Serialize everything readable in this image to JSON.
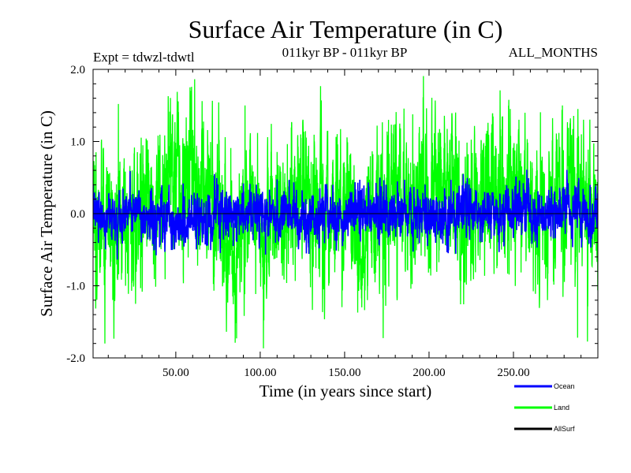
{
  "chart_data": {
    "type": "line",
    "title": "Surface Air Temperature (in C)",
    "subtitle_left": "Expt = tdwzl-tdwtl",
    "subtitle_center": "011kyr BP - 011kyr BP",
    "subtitle_right": "ALL_MONTHS",
    "xlabel": "Time (in years since start)",
    "ylabel": "Surface Air Temperature (in C)",
    "xlim": [
      1,
      300
    ],
    "ylim": [
      -2.0,
      2.0
    ],
    "x_ticks": [
      50,
      100,
      150,
      200,
      250
    ],
    "x_tick_labels": [
      "50.00",
      "100.00",
      "150.00",
      "200.00",
      "250.00"
    ],
    "y_ticks": [
      -2.0,
      -1.0,
      0.0,
      1.0,
      2.0
    ],
    "y_tick_labels": [
      "-2.0",
      "-1.0",
      "0.0",
      "1.0",
      "2.0"
    ],
    "zero_line": true,
    "grid": false,
    "legend_position": "bottom-right",
    "series": [
      {
        "name": "Land",
        "color": "#00ff00",
        "seed": 7,
        "amplitude": 0.42,
        "mean": 0.0,
        "notable_points": [
          {
            "x": 8,
            "y": -1.8
          },
          {
            "x": 16,
            "y": 1.52
          },
          {
            "x": 86,
            "y": -1.73
          },
          {
            "x": 91,
            "y": 1.5
          },
          {
            "x": 176,
            "y": 1.3
          },
          {
            "x": 279,
            "y": 1.5
          },
          {
            "x": 288,
            "y": -1.72
          }
        ]
      },
      {
        "name": "Ocean",
        "color": "#0000ff",
        "seed": 3,
        "amplitude": 0.14,
        "mean": 0.0,
        "notable_points": [
          {
            "x": 1,
            "y": 0.4
          },
          {
            "x": 90,
            "y": 0.42
          },
          {
            "x": 159,
            "y": 0.47
          },
          {
            "x": 84,
            "y": -0.45
          }
        ]
      },
      {
        "name": "AllSurf",
        "color": "#000000",
        "seed": 5,
        "amplitude": 0.0,
        "mean": 0.0,
        "notable_points": []
      }
    ],
    "legend": [
      {
        "name": "Ocean",
        "color": "#0000ff"
      },
      {
        "name": "Land",
        "color": "#00ff00"
      },
      {
        "name": "AllSurf",
        "color": "#000000"
      }
    ]
  }
}
